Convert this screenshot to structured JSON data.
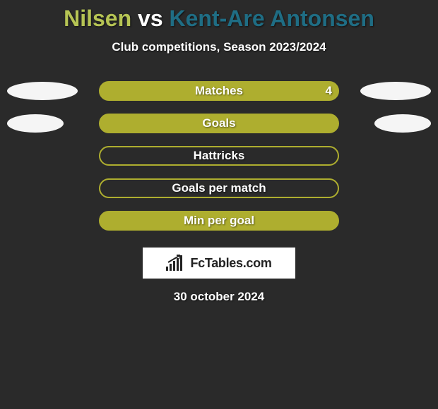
{
  "title": {
    "player1": "Nilsen",
    "vs": "vs",
    "player2": "Kent-Are Antonsen",
    "player1_color": "#b6c454",
    "vs_color": "#ffffff",
    "player2_color": "#1f6d84"
  },
  "subtitle": "Club competitions, Season 2023/2024",
  "background_color": "#2a2a2a",
  "bar_colors": {
    "filled": "#aeae2f",
    "outline": "#aeae2f",
    "label_text": "#ffffff",
    "value_text": "#ffffff",
    "side_ellipse": "#f5f5f5"
  },
  "stats": [
    {
      "label": "Matches",
      "left_value": "",
      "right_value": "4",
      "fill": "solid",
      "left_ellipse_width": 100,
      "right_ellipse_width": 100
    },
    {
      "label": "Goals",
      "left_value": "",
      "right_value": "",
      "fill": "solid",
      "left_ellipse_width": 80,
      "right_ellipse_width": 80
    },
    {
      "label": "Hattricks",
      "left_value": "",
      "right_value": "",
      "fill": "outline",
      "left_ellipse_width": 0,
      "right_ellipse_width": 0
    },
    {
      "label": "Goals per match",
      "left_value": "",
      "right_value": "",
      "fill": "outline",
      "left_ellipse_width": 0,
      "right_ellipse_width": 0
    },
    {
      "label": "Min per goal",
      "left_value": "",
      "right_value": "",
      "fill": "solid",
      "left_ellipse_width": 0,
      "right_ellipse_width": 0
    }
  ],
  "logo_text": "FcTables.com",
  "date": "30 october 2024"
}
